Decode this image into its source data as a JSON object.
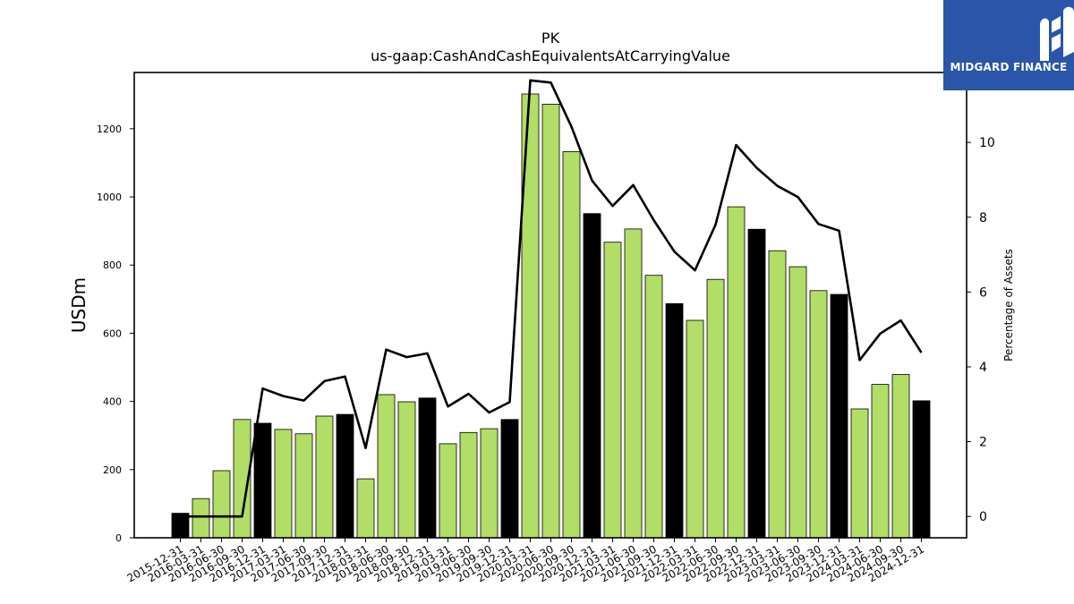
{
  "chart_data": {
    "type": "bar",
    "title": "PK",
    "subtitle": "us-gaap:CashAndCashEquivalentsAtCarryingValue",
    "ylabel": "USDm",
    "y2label": "Percentage of Assets",
    "ylim": [
      0,
      1365
    ],
    "y2lim": [
      -0.57,
      11.87
    ],
    "yticks": [
      0,
      200,
      400,
      600,
      800,
      1000,
      1200
    ],
    "y2ticks": [
      0,
      2,
      4,
      6,
      8,
      10
    ],
    "categories": [
      "2015-12-31",
      "2016-03-31",
      "2016-06-30",
      "2016-09-30",
      "2016-12-31",
      "2017-03-31",
      "2017-06-30",
      "2017-09-30",
      "2017-12-31",
      "2018-03-31",
      "2018-06-30",
      "2018-09-30",
      "2018-12-31",
      "2019-03-31",
      "2019-06-30",
      "2019-09-30",
      "2019-12-31",
      "2020-03-31",
      "2020-06-30",
      "2020-09-30",
      "2020-12-31",
      "2021-03-31",
      "2021-06-30",
      "2021-09-30",
      "2021-12-31",
      "2022-03-31",
      "2022-06-30",
      "2022-09-30",
      "2022-12-31",
      "2023-03-31",
      "2023-06-30",
      "2023-09-30",
      "2023-12-31",
      "2024-03-31",
      "2024-06-30",
      "2024-09-30",
      "2024-12-31"
    ],
    "series": [
      {
        "kind": "bar",
        "values": [
          72,
          115,
          197,
          347,
          336,
          318,
          305,
          357,
          362,
          173,
          420,
          399,
          410,
          276,
          309,
          320,
          347,
          1302,
          1272,
          1133,
          951,
          867,
          906,
          770,
          687,
          638,
          758,
          971,
          905,
          842,
          795,
          725,
          714,
          378,
          450,
          479,
          402
        ],
        "colors": [
          "#000000",
          "#b2dd66",
          "#b2dd66",
          "#b2dd66",
          "#000000",
          "#b2dd66",
          "#b2dd66",
          "#b2dd66",
          "#000000",
          "#b2dd66",
          "#b2dd66",
          "#b2dd66",
          "#000000",
          "#b2dd66",
          "#b2dd66",
          "#b2dd66",
          "#000000",
          "#b2dd66",
          "#b2dd66",
          "#b2dd66",
          "#000000",
          "#b2dd66",
          "#b2dd66",
          "#b2dd66",
          "#000000",
          "#b2dd66",
          "#b2dd66",
          "#b2dd66",
          "#000000",
          "#b2dd66",
          "#b2dd66",
          "#b2dd66",
          "#000000",
          "#b2dd66",
          "#b2dd66",
          "#b2dd66",
          "#000000"
        ]
      },
      {
        "kind": "line",
        "axis": "right",
        "color": "#000000",
        "values": [
          0.0,
          0.0,
          0.0,
          0.0,
          3.42,
          3.22,
          3.1,
          3.62,
          3.74,
          1.83,
          4.46,
          4.26,
          4.36,
          2.94,
          3.28,
          2.78,
          3.06,
          11.66,
          11.6,
          10.42,
          8.98,
          8.3,
          8.86,
          7.92,
          7.08,
          6.58,
          7.8,
          9.93,
          9.32,
          8.84,
          8.54,
          7.82,
          7.64,
          4.18,
          4.89,
          5.24,
          4.38
        ]
      }
    ],
    "grid": false
  },
  "logo": {
    "text": "MIDGARD FINANCE",
    "background": "#2a55a8"
  }
}
